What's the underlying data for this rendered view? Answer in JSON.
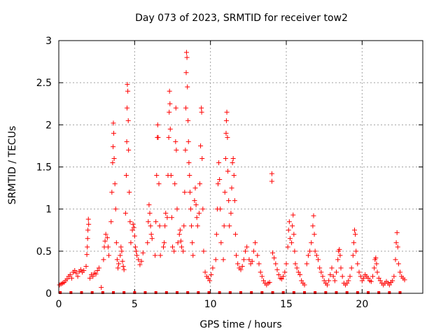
{
  "chart_data": {
    "type": "scatter",
    "title": "Day 073 of 2023, SRMTID for receiver tow2",
    "xlabel": "GPS time / hours",
    "ylabel": "SRMTID / TECUs",
    "xlim": [
      0,
      24
    ],
    "ylim": [
      0,
      3
    ],
    "xticks": [
      0,
      5,
      10,
      15,
      20
    ],
    "yticks": [
      0,
      0.5,
      1,
      1.5,
      2,
      2.5,
      3
    ],
    "xtick_labels": [
      "0",
      "5",
      "10",
      "15",
      "20"
    ],
    "ytick_labels": [
      "0",
      "0.5",
      "1",
      "1.5",
      "2",
      "2.5",
      "3"
    ],
    "grid": true,
    "marker": "+",
    "color": "#ff0000",
    "series": [
      {
        "name": "SRMTID tow2",
        "points": [
          [
            0.05,
            0.1
          ],
          [
            0.15,
            0.11
          ],
          [
            0.25,
            0.12
          ],
          [
            0.35,
            0.13
          ],
          [
            0.45,
            0.15
          ],
          [
            0.55,
            0.17
          ],
          [
            0.65,
            0.2
          ],
          [
            0.75,
            0.22
          ],
          [
            0.85,
            0.18
          ],
          [
            0.95,
            0.25
          ],
          [
            1.05,
            0.27
          ],
          [
            1.15,
            0.24
          ],
          [
            1.25,
            0.2
          ],
          [
            1.35,
            0.26
          ],
          [
            1.45,
            0.28
          ],
          [
            1.55,
            0.25
          ],
          [
            1.65,
            0.27
          ],
          [
            1.85,
            0.46
          ],
          [
            1.88,
            0.55
          ],
          [
            1.9,
            0.65
          ],
          [
            1.92,
            0.75
          ],
          [
            1.95,
            0.88
          ],
          [
            1.97,
            0.82
          ],
          [
            1.8,
            0.32
          ],
          [
            2.05,
            0.18
          ],
          [
            2.15,
            0.22
          ],
          [
            2.25,
            0.2
          ],
          [
            2.35,
            0.24
          ],
          [
            2.45,
            0.23
          ],
          [
            2.55,
            0.27
          ],
          [
            2.65,
            0.3
          ],
          [
            2.8,
            0.07
          ],
          [
            2.95,
            0.4
          ],
          [
            3.0,
            0.55
          ],
          [
            3.05,
            0.62
          ],
          [
            3.1,
            0.7
          ],
          [
            3.2,
            0.66
          ],
          [
            3.25,
            0.55
          ],
          [
            3.3,
            0.45
          ],
          [
            3.45,
            0.85
          ],
          [
            3.5,
            1.2
          ],
          [
            3.55,
            1.55
          ],
          [
            3.58,
            1.74
          ],
          [
            3.6,
            2.02
          ],
          [
            3.62,
            1.9
          ],
          [
            3.65,
            1.6
          ],
          [
            3.7,
            1.3
          ],
          [
            3.75,
            1.0
          ],
          [
            3.8,
            0.6
          ],
          [
            3.85,
            0.4
          ],
          [
            3.9,
            0.3
          ],
          [
            3.95,
            0.35
          ],
          [
            4.05,
            0.45
          ],
          [
            4.1,
            0.55
          ],
          [
            4.15,
            0.5
          ],
          [
            4.2,
            0.38
          ],
          [
            4.25,
            0.32
          ],
          [
            4.3,
            0.28
          ],
          [
            4.4,
            0.95
          ],
          [
            4.45,
            1.4
          ],
          [
            4.48,
            1.8
          ],
          [
            4.5,
            2.2
          ],
          [
            4.52,
            2.48
          ],
          [
            4.55,
            2.4
          ],
          [
            4.58,
            2.05
          ],
          [
            4.6,
            1.7
          ],
          [
            4.65,
            1.2
          ],
          [
            4.7,
            0.85
          ],
          [
            4.75,
            0.6
          ],
          [
            4.85,
            0.75
          ],
          [
            4.9,
            0.82
          ],
          [
            4.95,
            0.78
          ],
          [
            5.0,
            0.68
          ],
          [
            5.05,
            0.55
          ],
          [
            5.1,
            0.5
          ],
          [
            5.15,
            0.45
          ],
          [
            5.25,
            0.4
          ],
          [
            5.35,
            0.34
          ],
          [
            5.45,
            0.38
          ],
          [
            5.55,
            0.48
          ],
          [
            5.85,
            0.6
          ],
          [
            5.9,
            0.85
          ],
          [
            5.95,
            1.05
          ],
          [
            6.0,
            0.95
          ],
          [
            6.05,
            0.8
          ],
          [
            6.1,
            0.7
          ],
          [
            6.15,
            0.65
          ],
          [
            6.35,
            0.45
          ],
          [
            6.4,
            0.85
          ],
          [
            6.45,
            1.4
          ],
          [
            6.5,
            1.85
          ],
          [
            6.52,
            2.0
          ],
          [
            6.55,
            1.85
          ],
          [
            6.6,
            1.3
          ],
          [
            6.65,
            0.8
          ],
          [
            6.7,
            0.45
          ],
          [
            6.9,
            0.55
          ],
          [
            6.95,
            0.6
          ],
          [
            7.0,
            0.8
          ],
          [
            7.05,
            0.95
          ],
          [
            7.15,
            0.9
          ],
          [
            7.2,
            1.4
          ],
          [
            7.25,
            1.85
          ],
          [
            7.28,
            2.15
          ],
          [
            7.3,
            2.4
          ],
          [
            7.33,
            2.25
          ],
          [
            7.35,
            1.95
          ],
          [
            7.4,
            1.4
          ],
          [
            7.45,
            0.9
          ],
          [
            7.5,
            0.55
          ],
          [
            7.6,
            0.5
          ],
          [
            7.65,
            1.3
          ],
          [
            7.7,
            1.8
          ],
          [
            7.72,
            2.2
          ],
          [
            7.75,
            1.7
          ],
          [
            7.8,
            1.0
          ],
          [
            7.85,
            0.6
          ],
          [
            7.95,
            0.7
          ],
          [
            8.0,
            0.75
          ],
          [
            8.05,
            0.62
          ],
          [
            8.1,
            0.55
          ],
          [
            8.2,
            0.5
          ],
          [
            8.25,
            0.8
          ],
          [
            8.3,
            1.2
          ],
          [
            8.35,
            1.7
          ],
          [
            8.38,
            2.2
          ],
          [
            8.4,
            2.62
          ],
          [
            8.42,
            2.86
          ],
          [
            8.45,
            2.8
          ],
          [
            8.48,
            2.45
          ],
          [
            8.52,
            2.05
          ],
          [
            8.55,
            1.8
          ],
          [
            8.58,
            1.55
          ],
          [
            8.62,
            1.4
          ],
          [
            8.65,
            1.2
          ],
          [
            8.7,
            1.0
          ],
          [
            8.75,
            0.8
          ],
          [
            8.8,
            0.6
          ],
          [
            8.85,
            0.45
          ],
          [
            8.95,
            1.1
          ],
          [
            9.0,
            1.25
          ],
          [
            9.05,
            1.05
          ],
          [
            9.1,
            0.9
          ],
          [
            9.15,
            0.8
          ],
          [
            9.25,
            0.95
          ],
          [
            9.3,
            1.3
          ],
          [
            9.35,
            1.75
          ],
          [
            9.4,
            2.2
          ],
          [
            9.42,
            2.15
          ],
          [
            9.45,
            1.6
          ],
          [
            9.5,
            1.0
          ],
          [
            9.55,
            0.5
          ],
          [
            9.65,
            0.25
          ],
          [
            9.75,
            0.2
          ],
          [
            9.85,
            0.18
          ],
          [
            9.95,
            0.15
          ],
          [
            10.05,
            0.22
          ],
          [
            10.15,
            0.3
          ],
          [
            10.35,
            0.4
          ],
          [
            10.4,
            0.7
          ],
          [
            10.45,
            1.0
          ],
          [
            10.5,
            1.3
          ],
          [
            10.55,
            1.55
          ],
          [
            10.6,
            1.35
          ],
          [
            10.65,
            1.0
          ],
          [
            10.7,
            0.6
          ],
          [
            10.85,
            0.4
          ],
          [
            10.9,
            0.8
          ],
          [
            10.95,
            1.2
          ],
          [
            11.0,
            1.6
          ],
          [
            11.03,
            1.9
          ],
          [
            11.05,
            2.05
          ],
          [
            11.08,
            2.15
          ],
          [
            11.12,
            1.85
          ],
          [
            11.15,
            1.45
          ],
          [
            11.2,
            1.1
          ],
          [
            11.25,
            0.8
          ],
          [
            11.35,
            0.95
          ],
          [
            11.4,
            1.25
          ],
          [
            11.45,
            1.55
          ],
          [
            11.5,
            1.6
          ],
          [
            11.55,
            1.4
          ],
          [
            11.6,
            1.1
          ],
          [
            11.65,
            0.7
          ],
          [
            11.7,
            0.45
          ],
          [
            11.8,
            0.35
          ],
          [
            11.9,
            0.3
          ],
          [
            12.0,
            0.28
          ],
          [
            12.1,
            0.32
          ],
          [
            12.2,
            0.4
          ],
          [
            12.3,
            0.5
          ],
          [
            12.4,
            0.55
          ],
          [
            12.55,
            0.4
          ],
          [
            12.65,
            0.35
          ],
          [
            12.75,
            0.38
          ],
          [
            12.85,
            0.5
          ],
          [
            12.95,
            0.6
          ],
          [
            13.1,
            0.45
          ],
          [
            13.2,
            0.35
          ],
          [
            13.3,
            0.25
          ],
          [
            13.4,
            0.2
          ],
          [
            13.5,
            0.15
          ],
          [
            13.6,
            0.12
          ],
          [
            13.7,
            0.1
          ],
          [
            13.8,
            0.12
          ],
          [
            13.9,
            0.13
          ],
          [
            14.05,
            1.42
          ],
          [
            14.05,
            1.33
          ],
          [
            14.1,
            0.48
          ],
          [
            14.2,
            0.42
          ],
          [
            14.3,
            0.35
          ],
          [
            14.4,
            0.28
          ],
          [
            14.5,
            0.22
          ],
          [
            14.6,
            0.18
          ],
          [
            14.7,
            0.17
          ],
          [
            14.8,
            0.2
          ],
          [
            14.9,
            0.25
          ],
          [
            15.0,
            0.35
          ],
          [
            15.1,
            0.55
          ],
          [
            15.15,
            0.75
          ],
          [
            15.2,
            0.85
          ],
          [
            15.25,
            0.65
          ],
          [
            15.35,
            0.6
          ],
          [
            15.4,
            0.8
          ],
          [
            15.45,
            0.93
          ],
          [
            15.5,
            0.7
          ],
          [
            15.55,
            0.5
          ],
          [
            15.6,
            0.35
          ],
          [
            15.7,
            0.3
          ],
          [
            15.8,
            0.25
          ],
          [
            15.9,
            0.22
          ],
          [
            16.0,
            0.15
          ],
          [
            16.1,
            0.12
          ],
          [
            16.2,
            0.1
          ],
          [
            16.35,
            0.35
          ],
          [
            16.45,
            0.45
          ],
          [
            16.55,
            0.5
          ],
          [
            16.65,
            0.6
          ],
          [
            16.75,
            0.8
          ],
          [
            16.8,
            0.92
          ],
          [
            16.85,
            0.7
          ],
          [
            16.9,
            0.5
          ],
          [
            17.0,
            0.45
          ],
          [
            17.1,
            0.4
          ],
          [
            17.2,
            0.3
          ],
          [
            17.3,
            0.25
          ],
          [
            17.4,
            0.2
          ],
          [
            17.5,
            0.15
          ],
          [
            17.6,
            0.12
          ],
          [
            17.7,
            0.1
          ],
          [
            17.8,
            0.15
          ],
          [
            17.9,
            0.22
          ],
          [
            18.0,
            0.3
          ],
          [
            18.1,
            0.2
          ],
          [
            18.2,
            0.15
          ],
          [
            18.3,
            0.25
          ],
          [
            18.4,
            0.4
          ],
          [
            18.45,
            0.5
          ],
          [
            18.5,
            0.52
          ],
          [
            18.55,
            0.45
          ],
          [
            18.6,
            0.3
          ],
          [
            18.7,
            0.2
          ],
          [
            18.8,
            0.12
          ],
          [
            18.9,
            0.1
          ],
          [
            19.0,
            0.12
          ],
          [
            19.1,
            0.15
          ],
          [
            19.2,
            0.2
          ],
          [
            19.3,
            0.3
          ],
          [
            19.4,
            0.45
          ],
          [
            19.45,
            0.6
          ],
          [
            19.5,
            0.75
          ],
          [
            19.55,
            0.7
          ],
          [
            19.6,
            0.5
          ],
          [
            19.7,
            0.35
          ],
          [
            19.8,
            0.25
          ],
          [
            19.9,
            0.2
          ],
          [
            20.0,
            0.15
          ],
          [
            20.1,
            0.18
          ],
          [
            20.2,
            0.22
          ],
          [
            20.3,
            0.2
          ],
          [
            20.4,
            0.18
          ],
          [
            20.5,
            0.15
          ],
          [
            20.6,
            0.14
          ],
          [
            20.7,
            0.2
          ],
          [
            20.8,
            0.3
          ],
          [
            20.85,
            0.4
          ],
          [
            20.9,
            0.42
          ],
          [
            20.95,
            0.35
          ],
          [
            21.0,
            0.25
          ],
          [
            21.1,
            0.18
          ],
          [
            21.2,
            0.15
          ],
          [
            21.3,
            0.12
          ],
          [
            21.4,
            0.1
          ],
          [
            21.5,
            0.12
          ],
          [
            21.6,
            0.14
          ],
          [
            21.7,
            0.12
          ],
          [
            21.8,
            0.1
          ],
          [
            21.9,
            0.13
          ],
          [
            22.0,
            0.15
          ],
          [
            22.1,
            0.2
          ],
          [
            22.2,
            0.4
          ],
          [
            22.25,
            0.6
          ],
          [
            22.3,
            0.72
          ],
          [
            22.35,
            0.55
          ],
          [
            22.4,
            0.35
          ],
          [
            22.5,
            0.25
          ],
          [
            22.6,
            0.2
          ],
          [
            22.7,
            0.18
          ],
          [
            22.8,
            0.16
          ]
        ]
      }
    ],
    "baseline_markers_x": [
      0.1,
      0.8,
      1.5,
      2.2,
      2.9,
      3.6,
      4.3,
      5.0,
      5.7,
      6.4,
      7.1,
      7.8,
      8.5,
      9.2,
      9.9,
      10.6,
      11.3,
      12.0,
      12.7,
      13.4,
      14.1,
      14.8,
      15.5,
      16.2,
      16.9,
      17.6,
      18.3,
      19.0,
      19.7,
      20.4,
      21.1,
      21.8,
      22.5
    ]
  }
}
